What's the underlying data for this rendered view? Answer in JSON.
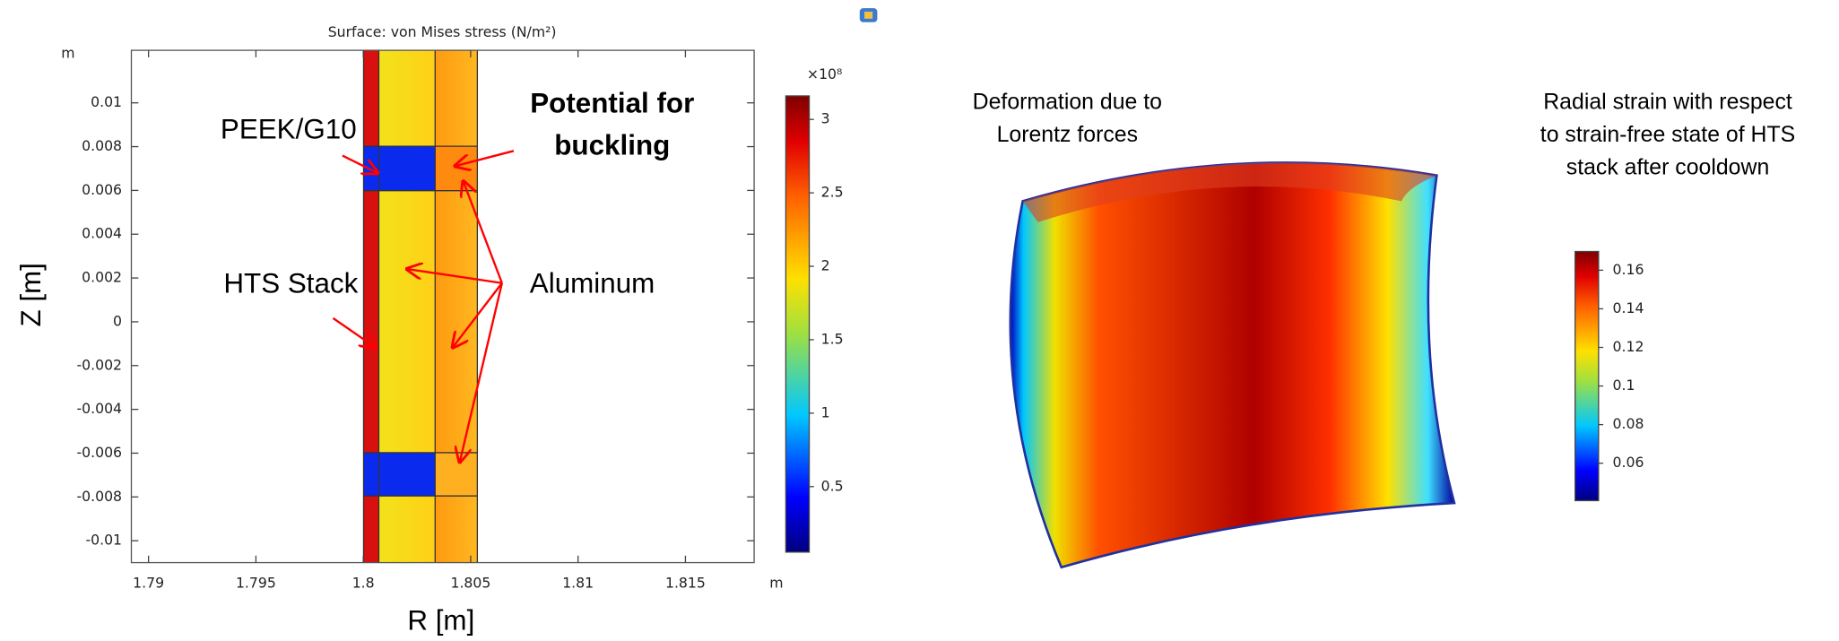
{
  "chart_data": [
    {
      "type": "surface",
      "title": "Surface: von Mises stress (N/m²)",
      "x_label": "R [m]",
      "y_label": "Z [m]",
      "x_unit": "m",
      "y_unit": "m",
      "xlim": [
        1.7892,
        1.8182
      ],
      "xticks": [
        1.79,
        1.795,
        1.8,
        1.805,
        1.81,
        1.815
      ],
      "ylim": [
        -0.011,
        0.0124
      ],
      "yticks": [
        0.01,
        0.008,
        0.006,
        0.004,
        0.002,
        0,
        -0.002,
        -0.004,
        -0.006,
        -0.008,
        -0.01
      ],
      "colorbar": {
        "multiplier": "×10⁸",
        "clim": [
          0.054,
          3.16
        ],
        "ticks": [
          0.5,
          1,
          1.5,
          2,
          2.5,
          3
        ]
      },
      "annotations": [
        {
          "lines": [
            "PEEK/G10"
          ],
          "color": "#000000"
        },
        {
          "lines": [
            "HTS Stack"
          ],
          "color": "#000000"
        },
        {
          "lines": [
            "Aluminum"
          ],
          "color": "#000000"
        },
        {
          "lines": [
            "Potential for",
            "buckling"
          ],
          "color": "#ff0000"
        }
      ]
    },
    {
      "type": "3d-surface",
      "title_lines": [
        "Deformation due to",
        "Lorentz forces"
      ],
      "colorbar": {
        "title_lines": [
          "Radial strain with respect",
          "to strain-free state of HTS",
          "stack after cooldown"
        ],
        "clim": [
          0.0406,
          0.1697
        ],
        "ticks": [
          0.06,
          0.08,
          0.1,
          0.12,
          0.14,
          0.16
        ]
      }
    }
  ]
}
